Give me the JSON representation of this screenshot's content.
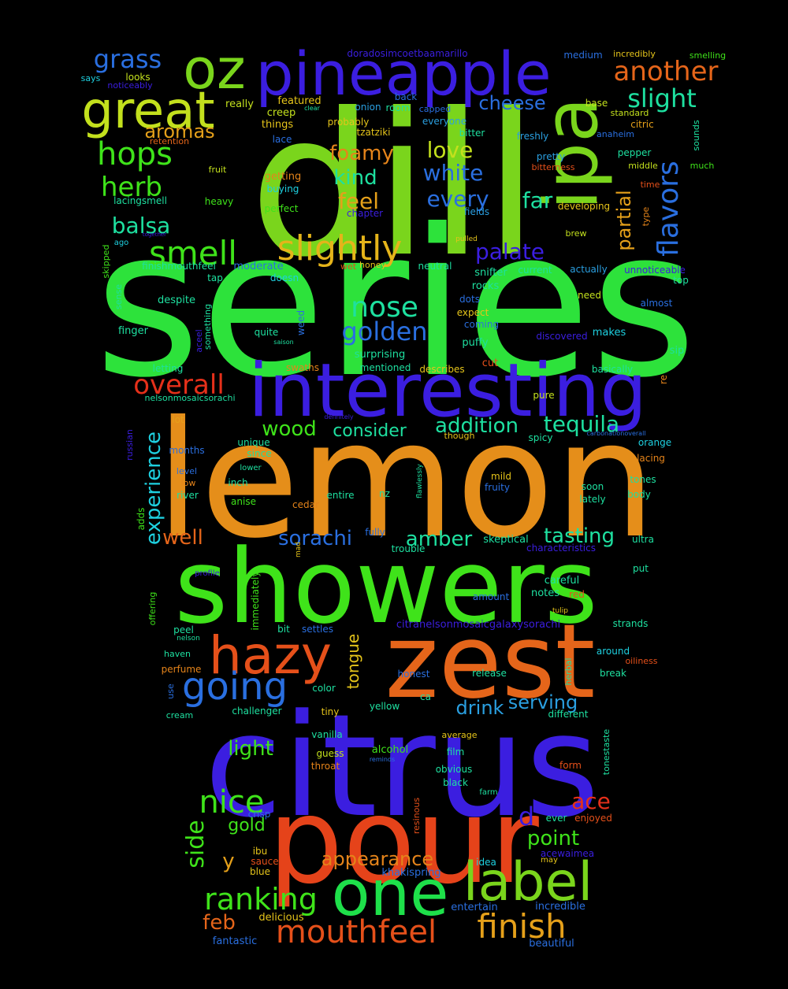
{
  "words": [
    {
      "text": "series",
      "color": "#2de23b"
    },
    {
      "text": "dill",
      "color": "#7ad51c"
    },
    {
      "text": "lemon",
      "color": "#e58e1a"
    },
    {
      "text": "citrus",
      "color": "#3b1ee0"
    },
    {
      "text": "showers",
      "color": "#3fe31a"
    },
    {
      "text": "pour",
      "color": "#e5431a"
    },
    {
      "text": "zest",
      "color": "#e5651a"
    },
    {
      "text": "interesting",
      "color": "#3b1ee0"
    },
    {
      "text": "pineapple",
      "color": "#3b1ee0"
    },
    {
      "text": "oz",
      "color": "#7ad51c"
    },
    {
      "text": "great",
      "color": "#c3e01d"
    },
    {
      "text": "ipa",
      "color": "#7ad51c"
    },
    {
      "text": "one",
      "color": "#1ee04a"
    },
    {
      "text": "label",
      "color": "#7ad51c"
    },
    {
      "text": "hazy",
      "color": "#e5501a"
    },
    {
      "text": "going",
      "color": "#2a6fe0"
    },
    {
      "text": "mouthfeel",
      "color": "#e5501a"
    },
    {
      "text": "finish",
      "color": "#e5a01a"
    },
    {
      "text": "ranking",
      "color": "#3fe31a"
    },
    {
      "text": "slightly",
      "color": "#e5b41a"
    },
    {
      "text": "smell",
      "color": "#3fe31a"
    },
    {
      "text": "hops",
      "color": "#3fe31a"
    },
    {
      "text": "herb",
      "color": "#3fe31a"
    },
    {
      "text": "nose",
      "color": "#1ee0a0"
    },
    {
      "text": "golden",
      "color": "#2a6fe0"
    },
    {
      "text": "overall",
      "color": "#e5301a"
    },
    {
      "text": "nice",
      "color": "#3fe31a"
    },
    {
      "text": "flavors",
      "color": "#2a6fe0"
    },
    {
      "text": "another",
      "color": "#e5651a"
    },
    {
      "text": "slight",
      "color": "#1ee0a0"
    },
    {
      "text": "grass",
      "color": "#2a6fe0"
    },
    {
      "text": "cheese",
      "color": "#2a6fe0"
    },
    {
      "text": "aromas",
      "color": "#e5a01a"
    },
    {
      "text": "foamy",
      "color": "#e5841a"
    },
    {
      "text": "love",
      "color": "#c3e01d"
    },
    {
      "text": "kind",
      "color": "#1ee0a0"
    },
    {
      "text": "white",
      "color": "#2a6fe0"
    },
    {
      "text": "feel",
      "color": "#e5a01a"
    },
    {
      "text": "every",
      "color": "#2a6fe0"
    },
    {
      "text": "far",
      "color": "#1ee0a0"
    },
    {
      "text": "partial",
      "color": "#e5a01a"
    },
    {
      "text": "balsa",
      "color": "#1ee0a0"
    },
    {
      "text": "palate",
      "color": "#3b1ee0"
    },
    {
      "text": "wood",
      "color": "#3fe31a"
    },
    {
      "text": "consider",
      "color": "#1ee0a0"
    },
    {
      "text": "addition",
      "color": "#1ee0a0"
    },
    {
      "text": "tequila",
      "color": "#1ee0a0"
    },
    {
      "text": "experience",
      "color": "#1ed0e0"
    },
    {
      "text": "well",
      "color": "#e5651a"
    },
    {
      "text": "sorachi",
      "color": "#2a6fe0"
    },
    {
      "text": "amber",
      "color": "#1ee0a0"
    },
    {
      "text": "tasting",
      "color": "#1ee0a0"
    },
    {
      "text": "tongue",
      "color": "#e5c41a"
    },
    {
      "text": "drink",
      "color": "#2a9fe0"
    },
    {
      "text": "serving",
      "color": "#2a9fe0"
    },
    {
      "text": "light",
      "color": "#3fe31a"
    },
    {
      "text": "side",
      "color": "#3fe31a"
    },
    {
      "text": "gold",
      "color": "#3fe31a"
    },
    {
      "text": "y",
      "color": "#e5a01a"
    },
    {
      "text": "appearance",
      "color": "#e5841a"
    },
    {
      "text": "point",
      "color": "#3fe31a"
    },
    {
      "text": "d",
      "color": "#3b1ee0"
    },
    {
      "text": "ace",
      "color": "#e5301a"
    },
    {
      "text": "feb",
      "color": "#e5651a"
    },
    {
      "text": "doradosimcoetbaamarillo",
      "color": "#3b1ee0"
    },
    {
      "text": "incredibly",
      "color": "#e5c41a"
    },
    {
      "text": "smelling",
      "color": "#3fe31a"
    },
    {
      "text": "medium",
      "color": "#2a6fe0"
    },
    {
      "text": "says",
      "color": "#1ed0e0"
    },
    {
      "text": "noticeably",
      "color": "#3b1ee0"
    },
    {
      "text": "looks",
      "color": "#c3e01d"
    },
    {
      "text": "really",
      "color": "#c3e01d"
    },
    {
      "text": "featured",
      "color": "#e5c41a"
    },
    {
      "text": "clear",
      "color": "#1ee0a0"
    },
    {
      "text": "onion",
      "color": "#2a9fe0"
    },
    {
      "text": "back",
      "color": "#2a6fe0"
    },
    {
      "text": "room",
      "color": "#1ee0a0"
    },
    {
      "text": "capped",
      "color": "#2a6fe0"
    },
    {
      "text": "base",
      "color": "#c3e01d"
    },
    {
      "text": "standard",
      "color": "#c3e01d"
    },
    {
      "text": "creep",
      "color": "#c3e01d"
    },
    {
      "text": "things",
      "color": "#e5c41a"
    },
    {
      "text": "probably",
      "color": "#e5c41a"
    },
    {
      "text": "everyone",
      "color": "#2a9fe0"
    },
    {
      "text": "citric",
      "color": "#e5a01a"
    },
    {
      "text": "retention",
      "color": "#e5651a"
    },
    {
      "text": "lace",
      "color": "#2a6fe0"
    },
    {
      "text": "tzatziki",
      "color": "#e5c41a"
    },
    {
      "text": "bitter",
      "color": "#1ee0a0"
    },
    {
      "text": "freshly",
      "color": "#2a9fe0"
    },
    {
      "text": "anaheim",
      "color": "#2a6fe0"
    },
    {
      "text": "sounds",
      "color": "#1ee0a0"
    },
    {
      "text": "fruit",
      "color": "#c3e01d"
    },
    {
      "text": "getting",
      "color": "#e5841a"
    },
    {
      "text": "pretty",
      "color": "#2a9fe0"
    },
    {
      "text": "bitterness",
      "color": "#e5501a"
    },
    {
      "text": "pepper",
      "color": "#1ee0a0"
    },
    {
      "text": "middle",
      "color": "#c3e01d"
    },
    {
      "text": "much",
      "color": "#3fe31a"
    },
    {
      "text": "buying",
      "color": "#1ed0e0"
    },
    {
      "text": "time",
      "color": "#e5501a"
    },
    {
      "text": "lacingsmell",
      "color": "#1ee0a0"
    },
    {
      "text": "heavy",
      "color": "#3fe31a"
    },
    {
      "text": "perfect",
      "color": "#3fe31a"
    },
    {
      "text": "chapter",
      "color": "#3b1ee0"
    },
    {
      "text": "fields",
      "color": "#2a9fe0"
    },
    {
      "text": "developing",
      "color": "#e5c41a"
    },
    {
      "text": "type",
      "color": "#e5841a"
    },
    {
      "text": "together",
      "color": "#3b1ee0"
    },
    {
      "text": "ago",
      "color": "#1ed0e0"
    },
    {
      "text": "pulled",
      "color": "#e5c41a"
    },
    {
      "text": "brew",
      "color": "#c3e01d"
    },
    {
      "text": "skipped",
      "color": "#3fe31a"
    },
    {
      "text": "finishmouthfeel",
      "color": "#1ee0a0"
    },
    {
      "text": "moderate",
      "color": "#2a6fe0"
    },
    {
      "text": "wet",
      "color": "#e5501a"
    },
    {
      "text": "honey",
      "color": "#e5c41a"
    },
    {
      "text": "neutral",
      "color": "#1ee0a0"
    },
    {
      "text": "snifter",
      "color": "#1ee0a0"
    },
    {
      "text": "current",
      "color": "#1ee0a0"
    },
    {
      "text": "actually",
      "color": "#2a9fe0"
    },
    {
      "text": "unnoticeable",
      "color": "#3b1ee0"
    },
    {
      "text": "tap",
      "color": "#1ee0a0"
    },
    {
      "text": "doesn",
      "color": "#1ed0e0"
    },
    {
      "text": "rocks",
      "color": "#1ee0a0"
    },
    {
      "text": "top",
      "color": "#1ee0a0"
    },
    {
      "text": "sense",
      "color": "#1ee0a0"
    },
    {
      "text": "despite",
      "color": "#1ee0a0"
    },
    {
      "text": "something",
      "color": "#1ee0a0"
    },
    {
      "text": "dots",
      "color": "#2a6fe0"
    },
    {
      "text": "need",
      "color": "#c3e01d"
    },
    {
      "text": "almost",
      "color": "#2a6fe0"
    },
    {
      "text": "expect",
      "color": "#e5c41a"
    },
    {
      "text": "coming",
      "color": "#2a6fe0"
    },
    {
      "text": "weed",
      "color": "#2a6fe0"
    },
    {
      "text": "finger",
      "color": "#1ee0a0"
    },
    {
      "text": "quite",
      "color": "#1ee0a0"
    },
    {
      "text": "makes",
      "color": "#1ed0e0"
    },
    {
      "text": "discovered",
      "color": "#3b1ee0"
    },
    {
      "text": "aceel",
      "color": "#3b1ee0"
    },
    {
      "text": "saison",
      "color": "#1ee0a0"
    },
    {
      "text": "puffy",
      "color": "#1ee0a0"
    },
    {
      "text": "sip",
      "color": "#1ee0a0"
    },
    {
      "text": "surprising",
      "color": "#1ee0a0"
    },
    {
      "text": "cut",
      "color": "#e5501a"
    },
    {
      "text": "letting",
      "color": "#1ee0a0"
    },
    {
      "text": "swaths",
      "color": "#e5841a"
    },
    {
      "text": "mentioned",
      "color": "#1ee0a0"
    },
    {
      "text": "describes",
      "color": "#e5c41a"
    },
    {
      "text": "basically",
      "color": "#1ee0a0"
    },
    {
      "text": "re",
      "color": "#e5841a"
    },
    {
      "text": "nelsonmosaicsorachi",
      "color": "#1ee0a0"
    },
    {
      "text": "pure",
      "color": "#c3e01d"
    },
    {
      "text": "definitely",
      "color": "#3b1ee0"
    },
    {
      "text": "lot",
      "color": "#e5a01a"
    },
    {
      "text": "though",
      "color": "#e5c41a"
    },
    {
      "text": "spicy",
      "color": "#1ee0a0"
    },
    {
      "text": "carbonationoverall",
      "color": "#2a6fe0"
    },
    {
      "text": "russian",
      "color": "#3b1ee0"
    },
    {
      "text": "unique",
      "color": "#1ee0a0"
    },
    {
      "text": "since",
      "color": "#1ee0a0"
    },
    {
      "text": "orange",
      "color": "#1ed0e0"
    },
    {
      "text": "months",
      "color": "#2a6fe0"
    },
    {
      "text": "lacing",
      "color": "#e5841a"
    },
    {
      "text": "lower",
      "color": "#1ee0a0"
    },
    {
      "text": "level",
      "color": "#2a6fe0"
    },
    {
      "text": "flawlessly",
      "color": "#1ee0a0"
    },
    {
      "text": "mild",
      "color": "#e5c41a"
    },
    {
      "text": "low",
      "color": "#e5841a"
    },
    {
      "text": "inch",
      "color": "#1ee0a0"
    },
    {
      "text": "fruity",
      "color": "#2a6fe0"
    },
    {
      "text": "soon",
      "color": "#1ee0a0"
    },
    {
      "text": "tones",
      "color": "#1ee0a0"
    },
    {
      "text": "river",
      "color": "#1ee0a0"
    },
    {
      "text": "entire",
      "color": "#1ee0a0"
    },
    {
      "text": "nz",
      "color": "#1ee0a0"
    },
    {
      "text": "lately",
      "color": "#1ee0a0"
    },
    {
      "text": "body",
      "color": "#1ee0a0"
    },
    {
      "text": "anise",
      "color": "#3fe31a"
    },
    {
      "text": "cedar",
      "color": "#e5841a"
    },
    {
      "text": "adds",
      "color": "#3fe31a"
    },
    {
      "text": "fully",
      "color": "#2a6fe0"
    },
    {
      "text": "skeptical",
      "color": "#1ee0a0"
    },
    {
      "text": "ultra",
      "color": "#1ee0a0"
    },
    {
      "text": "mad",
      "color": "#e5c41a"
    },
    {
      "text": "trouble",
      "color": "#1ee0a0"
    },
    {
      "text": "characteristics",
      "color": "#3b1ee0"
    },
    {
      "text": "profile",
      "color": "#3b1ee0"
    },
    {
      "text": "immediately",
      "color": "#3fe31a"
    },
    {
      "text": "careful",
      "color": "#1ee0a0"
    },
    {
      "text": "put",
      "color": "#1ee0a0"
    },
    {
      "text": "notes",
      "color": "#1ee0a0"
    },
    {
      "text": "red",
      "color": "#e5501a"
    },
    {
      "text": "offering",
      "color": "#3fe31a"
    },
    {
      "text": "amount",
      "color": "#2a6fe0"
    },
    {
      "text": "tulip",
      "color": "#e5c41a"
    },
    {
      "text": "peel",
      "color": "#1ee0a0"
    },
    {
      "text": "nelson",
      "color": "#1ee0a0"
    },
    {
      "text": "bit",
      "color": "#1ee0a0"
    },
    {
      "text": "settles",
      "color": "#2a6fe0"
    },
    {
      "text": "citranelsonmosaicgalaxysorachi",
      "color": "#3b1ee0"
    },
    {
      "text": "strands",
      "color": "#1ee0a0"
    },
    {
      "text": "haven",
      "color": "#1ee0a0"
    },
    {
      "text": "around",
      "color": "#1ed0e0"
    },
    {
      "text": "oiliness",
      "color": "#e5501a"
    },
    {
      "text": "perfume",
      "color": "#e5841a"
    },
    {
      "text": "herbal",
      "color": "#1ee0a0"
    },
    {
      "text": "honest",
      "color": "#2a6fe0"
    },
    {
      "text": "release",
      "color": "#1ee0a0"
    },
    {
      "text": "break",
      "color": "#1ee0a0"
    },
    {
      "text": "use",
      "color": "#2a6fe0"
    },
    {
      "text": "color",
      "color": "#1ee0a0"
    },
    {
      "text": "yellow",
      "color": "#1ee0a0"
    },
    {
      "text": "ca",
      "color": "#1ee0a0"
    },
    {
      "text": "cream",
      "color": "#1ee0a0"
    },
    {
      "text": "challenger",
      "color": "#1ee0a0"
    },
    {
      "text": "tiny",
      "color": "#e5c41a"
    },
    {
      "text": "different",
      "color": "#1ee0a0"
    },
    {
      "text": "vanilla",
      "color": "#1ee0a0"
    },
    {
      "text": "average",
      "color": "#e5c41a"
    },
    {
      "text": "tonestaste",
      "color": "#1ee0a0"
    },
    {
      "text": "guess",
      "color": "#c3e01d"
    },
    {
      "text": "alcohol",
      "color": "#3fe31a"
    },
    {
      "text": "film",
      "color": "#1ee0a0"
    },
    {
      "text": "reminds",
      "color": "#2a6fe0"
    },
    {
      "text": "throat",
      "color": "#e5841a"
    },
    {
      "text": "obvious",
      "color": "#1ee0a0"
    },
    {
      "text": "form",
      "color": "#e5501a"
    },
    {
      "text": "black",
      "color": "#1ee0a0"
    },
    {
      "text": "farm",
      "color": "#1ee0a0"
    },
    {
      "text": "resinous",
      "color": "#e5501a"
    },
    {
      "text": "crisp",
      "color": "#2a6fe0"
    },
    {
      "text": "ever",
      "color": "#1ee0a0"
    },
    {
      "text": "enjoyed",
      "color": "#e5501a"
    },
    {
      "text": "ibu",
      "color": "#e5c41a"
    },
    {
      "text": "acewaimea",
      "color": "#3b1ee0"
    },
    {
      "text": "sauce",
      "color": "#e5501a"
    },
    {
      "text": "blue",
      "color": "#e5c41a"
    },
    {
      "text": "idea",
      "color": "#1ed0e0"
    },
    {
      "text": "may",
      "color": "#e5c41a"
    },
    {
      "text": "khakispring",
      "color": "#2a6fe0"
    },
    {
      "text": "delicious",
      "color": "#e5c41a"
    },
    {
      "text": "entertain",
      "color": "#2a6fe0"
    },
    {
      "text": "incredible",
      "color": "#2a6fe0"
    },
    {
      "text": "fantastic",
      "color": "#2a6fe0"
    },
    {
      "text": "beautiful",
      "color": "#2a6fe0"
    }
  ]
}
